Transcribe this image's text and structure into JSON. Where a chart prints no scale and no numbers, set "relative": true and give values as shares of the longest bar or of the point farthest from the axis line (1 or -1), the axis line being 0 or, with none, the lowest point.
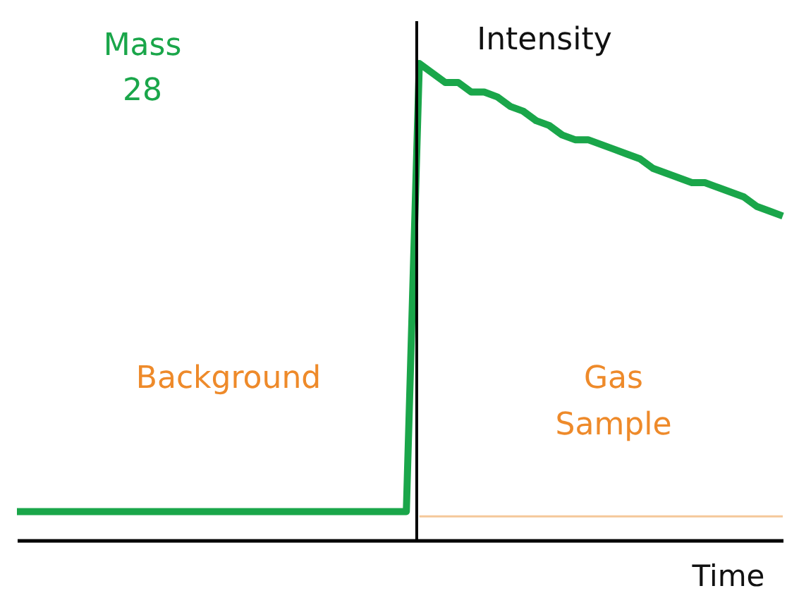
{
  "chart_data": {
    "type": "line",
    "relative": true,
    "xlabel": "Time",
    "ylabel": "Intensity",
    "categories": [
      null,
      null,
      null,
      null,
      null,
      null,
      null,
      null,
      null,
      null,
      null,
      null,
      null,
      null,
      null,
      null,
      null,
      null,
      null,
      null,
      null,
      null,
      null,
      null,
      null,
      null,
      null,
      null,
      null,
      null,
      null,
      null,
      null,
      null,
      null,
      null,
      null,
      null,
      null,
      null,
      null,
      null,
      null,
      null,
      null,
      null,
      null,
      null,
      null,
      null,
      null,
      null,
      null,
      null,
      null,
      null,
      null,
      null,
      null,
      null
    ],
    "series": [
      {
        "name": "Mass 28",
        "color": "#1aa64a",
        "values": [
          0.06,
          0.06,
          0.06,
          0.06,
          0.06,
          0.06,
          0.06,
          0.06,
          0.06,
          0.06,
          0.06,
          0.06,
          0.06,
          0.06,
          0.06,
          0.06,
          0.06,
          0.06,
          0.06,
          0.06,
          0.06,
          0.06,
          0.06,
          0.06,
          0.06,
          0.06,
          0.06,
          0.06,
          0.06,
          0.06,
          0.06,
          1.0,
          0.98,
          0.96,
          0.96,
          0.94,
          0.94,
          0.93,
          0.91,
          0.9,
          0.88,
          0.87,
          0.85,
          0.84,
          0.84,
          0.83,
          0.82,
          0.81,
          0.8,
          0.78,
          0.77,
          0.76,
          0.75,
          0.75,
          0.74,
          0.73,
          0.72,
          0.7,
          0.69,
          0.68
        ]
      },
      {
        "color": "#f5c89a",
        "values": [
          null,
          null,
          null,
          null,
          null,
          null,
          null,
          null,
          null,
          null,
          null,
          null,
          null,
          null,
          null,
          null,
          null,
          null,
          null,
          null,
          null,
          null,
          null,
          null,
          null,
          null,
          null,
          null,
          null,
          null,
          null,
          0.05,
          0.05,
          0.05,
          0.05,
          0.05,
          0.05,
          0.05,
          0.05,
          0.05,
          0.05,
          0.05,
          0.05,
          0.05,
          0.05,
          0.05,
          0.05,
          0.05,
          0.05,
          0.05,
          0.05,
          0.05,
          0.05,
          0.05,
          0.05,
          0.05,
          0.05,
          0.05,
          0.05,
          0.05
        ]
      }
    ],
    "annotations": [
      "Background",
      "Gas Sample"
    ]
  }
}
